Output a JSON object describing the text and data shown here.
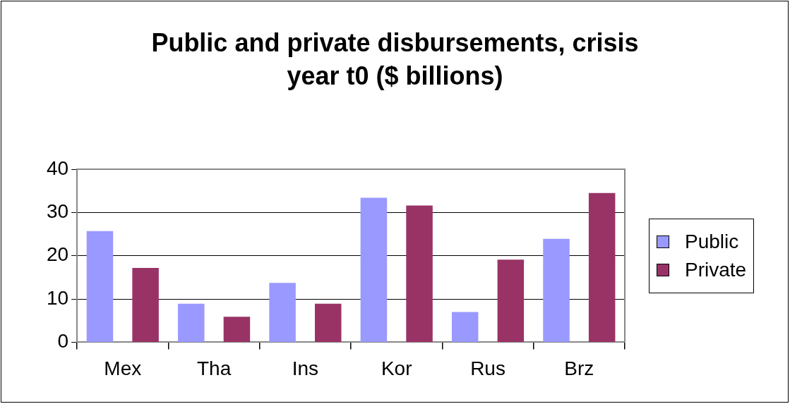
{
  "chart_data": {
    "type": "bar",
    "title": "Public and private disbursements, crisis year t0 ($ billions)",
    "categories": [
      "Mex",
      "Tha",
      "Ins",
      "Kor",
      "Rus",
      "Brz"
    ],
    "series": [
      {
        "name": "Public",
        "color": "#9999ff",
        "values": [
          25.7,
          8.9,
          13.7,
          33.4,
          7.0,
          23.9
        ]
      },
      {
        "name": "Private",
        "color": "#993366",
        "values": [
          17.2,
          5.9,
          8.9,
          31.6,
          19.1,
          34.5
        ]
      }
    ],
    "ylim": [
      0,
      40
    ],
    "yticks": [
      0,
      10,
      20,
      30,
      40
    ],
    "grid": "y",
    "legend": "right"
  }
}
